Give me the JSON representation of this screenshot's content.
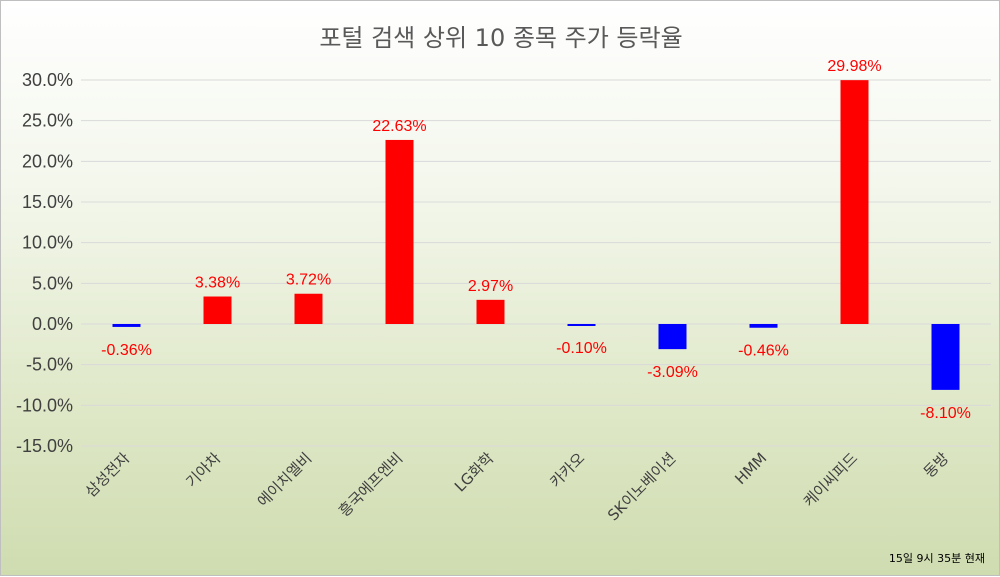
{
  "chart_data": {
    "type": "bar",
    "title": "포털 검색 상위 10 종목 주가 등락율",
    "categories": [
      "삼성전자",
      "기아차",
      "에이치엘비",
      "흥국에프엔비",
      "LG화학",
      "카카오",
      "SK이노베이션",
      "HMM",
      "케이씨피드",
      "동방"
    ],
    "values": [
      -0.36,
      3.38,
      3.72,
      22.63,
      2.97,
      -0.1,
      -3.09,
      -0.46,
      29.98,
      -8.1
    ],
    "value_labels": [
      "-0.36%",
      "3.38%",
      "3.72%",
      "22.63%",
      "2.97%",
      "-0.10%",
      "-3.09%",
      "-0.46%",
      "29.98%",
      "-8.10%"
    ],
    "ylim": [
      -15,
      30
    ],
    "yticks": [
      30,
      25,
      20,
      15,
      10,
      5,
      0,
      -5,
      -10,
      -15
    ],
    "ytick_labels": [
      "30.0%",
      "25.0%",
      "20.0%",
      "15.0%",
      "10.0%",
      "5.0%",
      "0.0%",
      "-5.0%",
      "-10.0%",
      "-15.0%"
    ],
    "xlabel": "",
    "ylabel": "",
    "grid": true,
    "legend": "none",
    "colors": {
      "positive": "#ff0000",
      "negative": "#0000ff",
      "label": "#ff0000"
    },
    "footnote": "15일 9시 35분 현재"
  }
}
